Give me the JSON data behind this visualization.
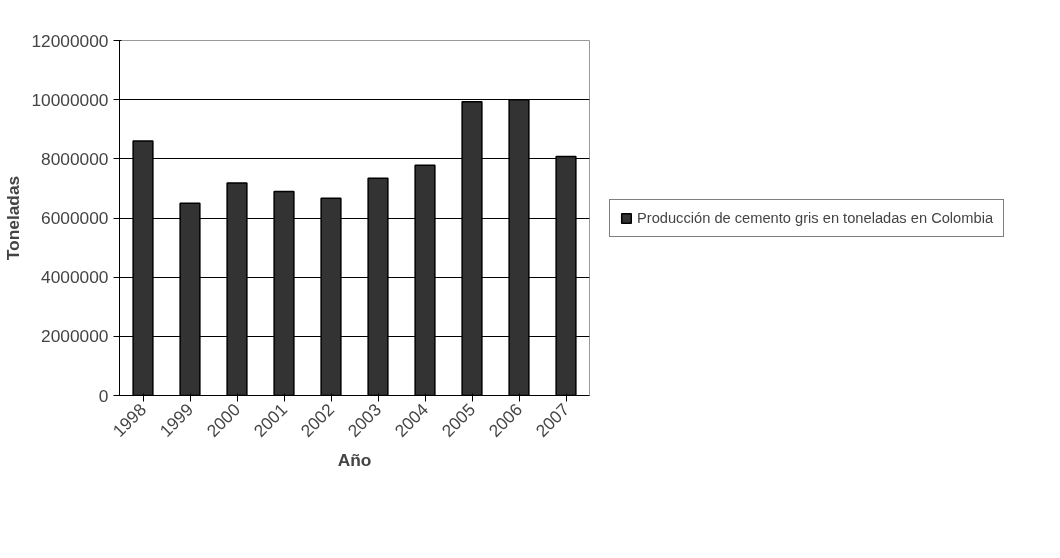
{
  "chart_data": {
    "type": "bar",
    "xlabel": "Año",
    "ylabel": "Toneladas",
    "categories": [
      "1998",
      "1999",
      "2000",
      "2001",
      "2002",
      "2003",
      "2004",
      "2005",
      "2006",
      "2007"
    ],
    "series": [
      {
        "name": "Producción de cemento gris en toneladas en Colombia",
        "color": "#333333",
        "values": [
          8600000,
          6500000,
          7180000,
          6900000,
          6670000,
          7340000,
          7780000,
          9930000,
          10000000,
          8080000
        ]
      }
    ],
    "ylim": [
      0,
      12000000
    ],
    "yticks": [
      0,
      2000000,
      4000000,
      6000000,
      8000000,
      10000000,
      12000000
    ],
    "grid": "y",
    "legend": "right"
  }
}
